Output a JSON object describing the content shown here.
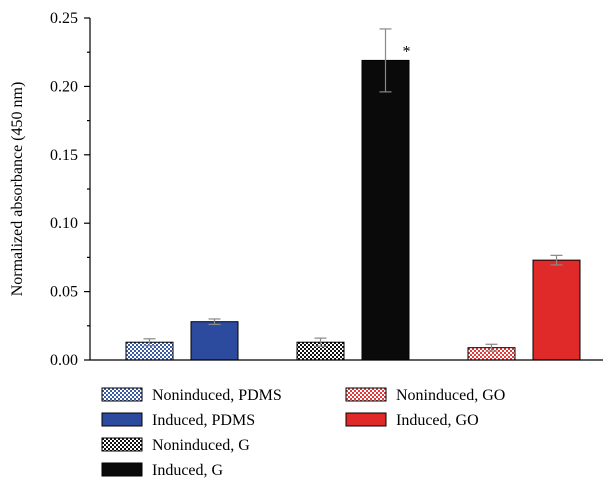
{
  "chart_data": {
    "type": "bar",
    "title": "",
    "xlabel": "",
    "ylabel": "Normalized absorbance (450 nm)",
    "ylim": [
      0,
      0.25
    ],
    "yticks": [
      "0.00",
      "0.05",
      "0.10",
      "0.15",
      "0.20",
      "0.25"
    ],
    "grid": false,
    "legend_position": "bottom",
    "series": [
      {
        "name": "Noninduced, PDMS",
        "group": "PDMS",
        "value": 0.013,
        "error": 0.0025,
        "color": "#3a5aa6",
        "pattern": "checker"
      },
      {
        "name": "Induced, PDMS",
        "group": "PDMS",
        "value": 0.028,
        "error": 0.002,
        "color": "#2c4b9e",
        "pattern": "solid"
      },
      {
        "name": "Noninduced, G",
        "group": "G",
        "value": 0.013,
        "error": 0.003,
        "color": "#111111",
        "pattern": "checker"
      },
      {
        "name": "Induced, G",
        "group": "G",
        "value": 0.219,
        "error": 0.023,
        "color": "#0a0a0a",
        "pattern": "solid",
        "annotation": "*"
      },
      {
        "name": "Noninduced, GO",
        "group": "GO",
        "value": 0.009,
        "error": 0.0025,
        "color": "#e03a3a",
        "pattern": "checker"
      },
      {
        "name": "Induced, GO",
        "group": "GO",
        "value": 0.073,
        "error": 0.0035,
        "color": "#e02a2a",
        "pattern": "solid"
      }
    ]
  }
}
